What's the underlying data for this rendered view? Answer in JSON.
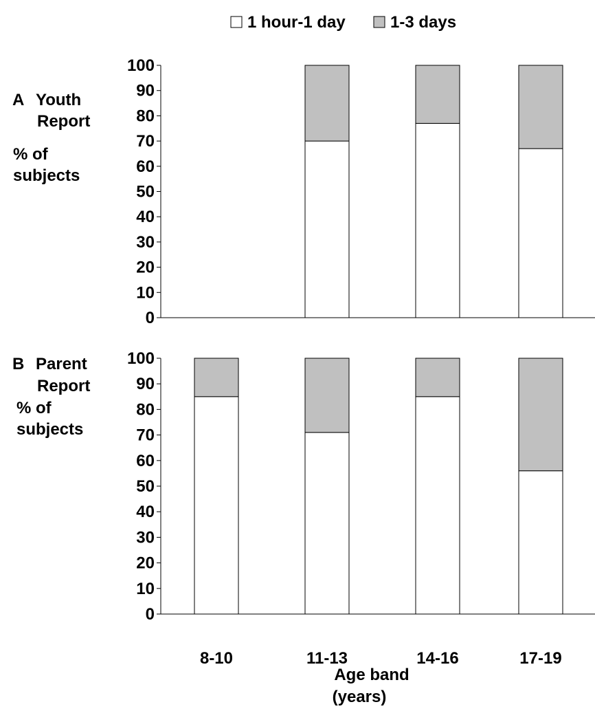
{
  "legend": {
    "items": [
      {
        "label": "1 hour-1 day",
        "color": "#ffffff"
      },
      {
        "label": "1-3 days",
        "color": "#c0c0c0"
      }
    ]
  },
  "x_axis": {
    "label_line1": "Age band",
    "label_line2": "(years)"
  },
  "chart_data": [
    {
      "type": "bar",
      "stacked": true,
      "panel_label": "A",
      "title_lines": [
        "Youth",
        "Report"
      ],
      "ylabel_lines": [
        "% of",
        "subjects"
      ],
      "categories": [
        "8-10",
        "11-13",
        "14-16",
        "17-19"
      ],
      "series": [
        {
          "name": "1 hour-1 day",
          "color": "#ffffff",
          "values": [
            null,
            70,
            77,
            67
          ]
        },
        {
          "name": "1-3 days",
          "color": "#c0c0c0",
          "values": [
            null,
            30,
            23,
            33
          ]
        }
      ],
      "ylim": [
        0,
        100
      ],
      "yticks": [
        0,
        10,
        20,
        30,
        40,
        50,
        60,
        70,
        80,
        90,
        100
      ],
      "grid": false
    },
    {
      "type": "bar",
      "stacked": true,
      "panel_label": "B",
      "title_lines": [
        "Parent",
        "Report"
      ],
      "ylabel_lines": [
        "% of",
        "subjects"
      ],
      "categories": [
        "8-10",
        "11-13",
        "14-16",
        "17-19"
      ],
      "series": [
        {
          "name": "1 hour-1 day",
          "color": "#ffffff",
          "values": [
            85,
            71,
            85,
            56
          ]
        },
        {
          "name": "1-3 days",
          "color": "#c0c0c0",
          "values": [
            15,
            29,
            15,
            44
          ]
        }
      ],
      "ylim": [
        0,
        100
      ],
      "yticks": [
        0,
        10,
        20,
        30,
        40,
        50,
        60,
        70,
        80,
        90,
        100
      ],
      "grid": false
    }
  ]
}
